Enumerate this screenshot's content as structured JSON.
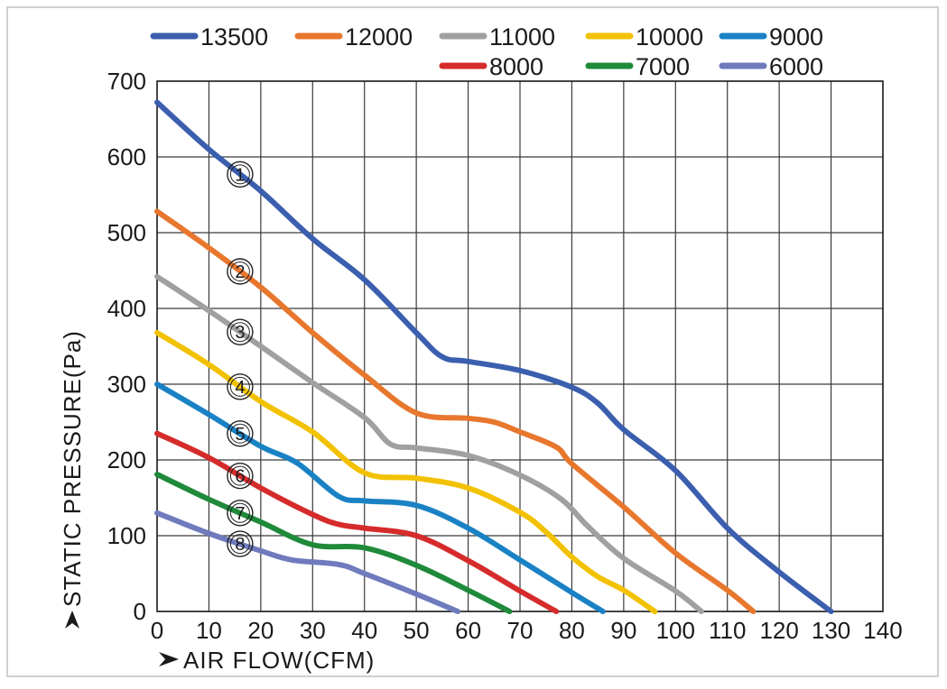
{
  "chart_data": {
    "type": "line",
    "xlabel": "AIR FLOW(CFM)",
    "ylabel": "STATIC PRESSURE(Pa)",
    "xlim": [
      0,
      140
    ],
    "ylim": [
      0,
      700
    ],
    "x_ticks": [
      "0",
      "10",
      "20",
      "30",
      "40",
      "50",
      "60",
      "70",
      "80",
      "90",
      "100",
      "110",
      "120",
      "130",
      "140"
    ],
    "y_ticks": [
      "0",
      "100",
      "200",
      "300",
      "400",
      "500",
      "600",
      "700"
    ],
    "grid": true,
    "legend_position": "top",
    "series": [
      {
        "name": "13500",
        "color": "#3b5fae",
        "marker": "1",
        "points": [
          [
            0,
            672
          ],
          [
            10,
            610
          ],
          [
            20,
            555
          ],
          [
            30,
            492
          ],
          [
            40,
            438
          ],
          [
            50,
            368
          ],
          [
            55,
            336
          ],
          [
            60,
            330
          ],
          [
            70,
            318
          ],
          [
            80,
            296
          ],
          [
            85,
            275
          ],
          [
            90,
            240
          ],
          [
            100,
            186
          ],
          [
            110,
            110
          ],
          [
            120,
            52
          ],
          [
            130,
            0
          ]
        ]
      },
      {
        "name": "12000",
        "color": "#e8772e",
        "marker": "2",
        "points": [
          [
            0,
            528
          ],
          [
            10,
            480
          ],
          [
            20,
            428
          ],
          [
            30,
            368
          ],
          [
            40,
            312
          ],
          [
            50,
            262
          ],
          [
            60,
            255
          ],
          [
            65,
            250
          ],
          [
            70,
            237
          ],
          [
            77,
            217
          ],
          [
            80,
            195
          ],
          [
            90,
            138
          ],
          [
            100,
            77
          ],
          [
            110,
            28
          ],
          [
            115,
            0
          ]
        ]
      },
      {
        "name": "11000",
        "color": "#a0a0a0",
        "marker": "3",
        "points": [
          [
            0,
            442
          ],
          [
            10,
            397
          ],
          [
            20,
            350
          ],
          [
            30,
            302
          ],
          [
            40,
            256
          ],
          [
            45,
            221
          ],
          [
            50,
            216
          ],
          [
            60,
            206
          ],
          [
            70,
            180
          ],
          [
            78,
            148
          ],
          [
            83,
            113
          ],
          [
            90,
            70
          ],
          [
            100,
            27
          ],
          [
            105,
            0
          ]
        ]
      },
      {
        "name": "10000",
        "color": "#f2c100",
        "marker": "4",
        "points": [
          [
            0,
            368
          ],
          [
            10,
            326
          ],
          [
            20,
            277
          ],
          [
            30,
            237
          ],
          [
            40,
            183
          ],
          [
            50,
            176
          ],
          [
            60,
            163
          ],
          [
            70,
            131
          ],
          [
            75,
            105
          ],
          [
            80,
            72
          ],
          [
            85,
            46
          ],
          [
            90,
            28
          ],
          [
            96,
            0
          ]
        ]
      },
      {
        "name": "9000",
        "color": "#1a82c4",
        "marker": "5",
        "points": [
          [
            0,
            300
          ],
          [
            10,
            260
          ],
          [
            20,
            218
          ],
          [
            27,
            196
          ],
          [
            35,
            152
          ],
          [
            40,
            146
          ],
          [
            50,
            140
          ],
          [
            60,
            110
          ],
          [
            70,
            68
          ],
          [
            80,
            25
          ],
          [
            86,
            0
          ]
        ]
      },
      {
        "name": "8000",
        "color": "#d62b2b",
        "marker": "6",
        "points": [
          [
            0,
            235
          ],
          [
            10,
            203
          ],
          [
            20,
            163
          ],
          [
            30,
            128
          ],
          [
            35,
            115
          ],
          [
            40,
            110
          ],
          [
            50,
            100
          ],
          [
            60,
            67
          ],
          [
            70,
            27
          ],
          [
            77,
            0
          ]
        ]
      },
      {
        "name": "7000",
        "color": "#1f8a3a",
        "marker": "7",
        "points": [
          [
            0,
            181
          ],
          [
            10,
            148
          ],
          [
            20,
            118
          ],
          [
            30,
            88
          ],
          [
            40,
            84
          ],
          [
            50,
            61
          ],
          [
            60,
            28
          ],
          [
            68,
            0
          ]
        ]
      },
      {
        "name": "6000",
        "color": "#6f7bbd",
        "marker": "8",
        "points": [
          [
            0,
            130
          ],
          [
            10,
            103
          ],
          [
            20,
            80
          ],
          [
            26,
            68
          ],
          [
            35,
            62
          ],
          [
            40,
            50
          ],
          [
            50,
            23
          ],
          [
            58,
            0
          ]
        ]
      }
    ]
  }
}
